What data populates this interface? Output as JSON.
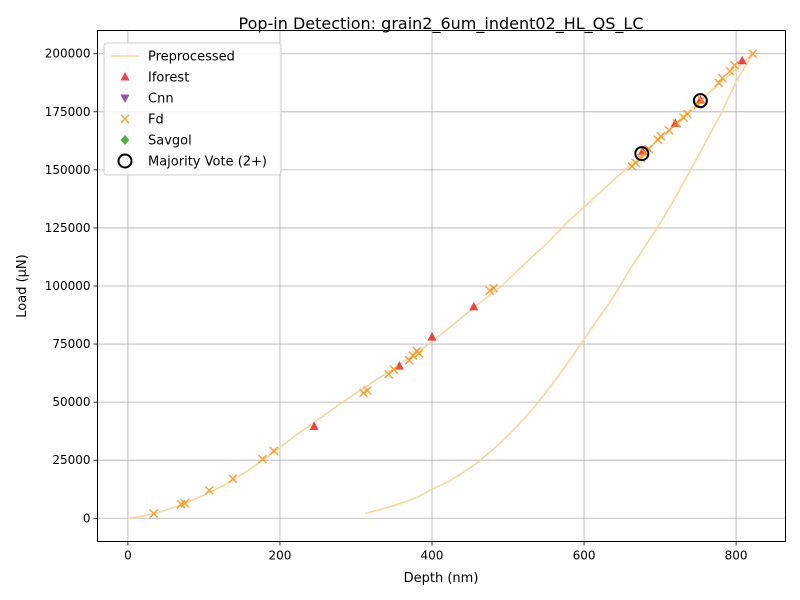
{
  "chart_data": {
    "type": "scatter",
    "title": "Pop-in Detection: grain2_6um_indent02_HL_QS_LC",
    "xlabel": "Depth (nm)",
    "ylabel": "Load (µN)",
    "xlim": [
      -40,
      865
    ],
    "ylim": [
      -10000,
      210000
    ],
    "xticks": [
      0,
      200,
      400,
      600,
      800
    ],
    "yticks": [
      0,
      25000,
      50000,
      75000,
      100000,
      125000,
      150000,
      175000,
      200000
    ],
    "grid": true,
    "legend_position": "top-left",
    "series": [
      {
        "name": "Preprocessed",
        "kind": "line",
        "color": "#fdd49e",
        "x": [
          0,
          20,
          40,
          60,
          80,
          100,
          130,
          160,
          190,
          220,
          250,
          280,
          310,
          340,
          370,
          400,
          430,
          460,
          490,
          520,
          550,
          580,
          610,
          640,
          670,
          700,
          730,
          760,
          790,
          822,
          800,
          780,
          760,
          740,
          720,
          700,
          680,
          660,
          640,
          620,
          600,
          580,
          560,
          540,
          520,
          500,
          480,
          460,
          440,
          420,
          400,
          380,
          360,
          340,
          325,
          312
        ],
        "y": [
          0,
          1000,
          2500,
          4500,
          7000,
          10000,
          14800,
          21000,
          28000,
          35500,
          42500,
          49500,
          56000,
          62500,
          69000,
          76000,
          84000,
          92000,
          99500,
          109000,
          118000,
          128000,
          137000,
          146000,
          154500,
          163500,
          173000,
          182000,
          190500,
          200000,
          188000,
          174000,
          162000,
          150000,
          138000,
          127000,
          117000,
          107000,
          96000,
          86500,
          77000,
          67500,
          58500,
          50000,
          42500,
          35500,
          29500,
          24000,
          19500,
          15500,
          12500,
          9000,
          6500,
          4500,
          3200,
          2000
        ]
      },
      {
        "name": "Iforest",
        "kind": "marker",
        "marker": "triangle-up",
        "color": "#e31a1c",
        "x": [
          245,
          357,
          400,
          455,
          677,
          720,
          753,
          808
        ],
        "y": [
          39500,
          65500,
          78000,
          91000,
          158000,
          170000,
          180000,
          197000
        ]
      },
      {
        "name": "Cnn",
        "kind": "marker",
        "marker": "triangle-down",
        "color": "#7b2d8e",
        "x": [],
        "y": []
      },
      {
        "name": "Fd",
        "kind": "marker",
        "marker": "x",
        "color": "#f7941d",
        "x": [
          34,
          70,
          75,
          107,
          138,
          177,
          192,
          310,
          315,
          343,
          350,
          370,
          375,
          380,
          383,
          476,
          481,
          663,
          668,
          675,
          680,
          685,
          697,
          701,
          712,
          722,
          731,
          736,
          750,
          755,
          777,
          782,
          792,
          798,
          822
        ],
        "y": [
          2000,
          6000,
          6500,
          12000,
          17000,
          25500,
          29000,
          54000,
          55000,
          62000,
          64000,
          68000,
          70000,
          72000,
          71000,
          98000,
          99000,
          151500,
          153000,
          155000,
          157500,
          159000,
          163000,
          164500,
          167000,
          170000,
          172500,
          174000,
          178000,
          180000,
          187500,
          189500,
          192500,
          195000,
          200000
        ]
      },
      {
        "name": "Savgol",
        "kind": "marker",
        "marker": "diamond",
        "color": "#33a02c",
        "x": [],
        "y": []
      },
      {
        "name": "Majority Vote (2+)",
        "kind": "marker",
        "marker": "circle-open",
        "color": "#000000",
        "x": [
          676,
          753
        ],
        "y": [
          157000,
          179800
        ]
      }
    ]
  }
}
